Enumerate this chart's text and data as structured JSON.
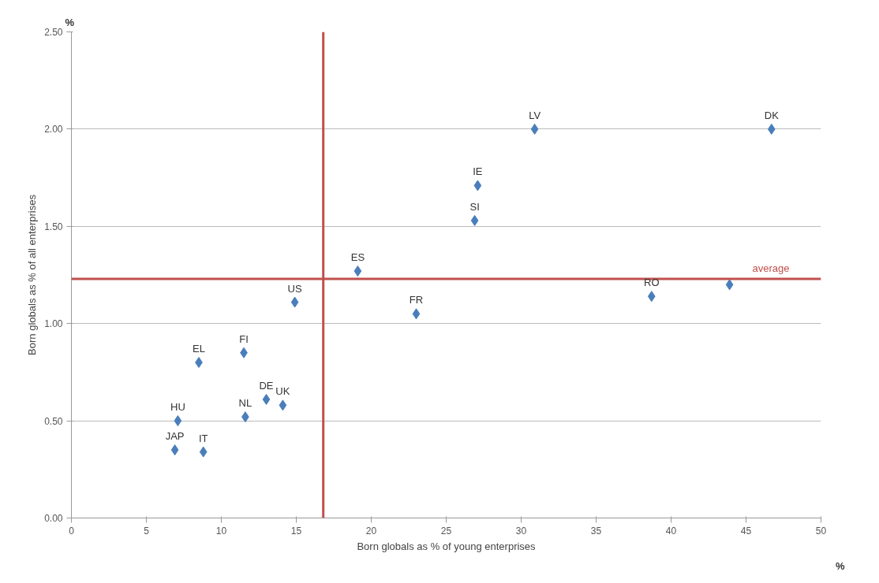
{
  "chart_data": {
    "type": "scatter",
    "xlabel": "Born globals as % of young enterprises",
    "ylabel": "Born globals as % of all enterprises",
    "x": [
      6.9,
      7.1,
      8.5,
      8.8,
      11.5,
      11.6,
      13.0,
      14.1,
      14.9,
      19.1,
      23.0,
      26.9,
      27.1,
      30.9,
      38.7,
      43.9,
      46.7
    ],
    "series": [
      {
        "color": "#4a7ebb",
        "values": [
          0.35,
          0.5,
          0.8,
          0.34,
          0.85,
          0.52,
          0.61,
          0.58,
          1.11,
          1.27,
          1.05,
          1.53,
          1.71,
          2.0,
          1.14,
          1.2,
          2.0
        ]
      }
    ],
    "marker": "diamond",
    "xlim": [
      0,
      50
    ],
    "xticks": [
      0,
      5,
      10,
      15,
      20,
      25,
      30,
      35,
      40,
      45,
      50
    ],
    "ylim": [
      0,
      2.5
    ],
    "yticks": [
      {
        "value": 0,
        "label": "0.00"
      },
      {
        "value": 0.5,
        "label": "0.50"
      },
      {
        "value": 1,
        "label": "1.00"
      },
      {
        "value": 1.5,
        "label": "1.50"
      },
      {
        "value": 2,
        "label": "2.00"
      },
      {
        "value": 2.5,
        "label": "2.50"
      }
    ],
    "grid": "y",
    "ref_lines": [
      {
        "axis": "x",
        "value": 16.8,
        "label": null,
        "color": "#c0504d"
      },
      {
        "axis": "y",
        "value": 1.23,
        "label": "average",
        "color": "#c0504d"
      }
    ],
    "annotations": [
      {
        "text": "JAP",
        "x": 6.9,
        "y": 0.35
      },
      {
        "text": "HU",
        "x": 7.1,
        "y": 0.5
      },
      {
        "text": "EL",
        "x": 8.5,
        "y": 0.8
      },
      {
        "text": "IT",
        "x": 8.8,
        "y": 0.34
      },
      {
        "text": "FI",
        "x": 11.5,
        "y": 0.85
      },
      {
        "text": "NL",
        "x": 11.6,
        "y": 0.52
      },
      {
        "text": "DE",
        "x": 13.0,
        "y": 0.61
      },
      {
        "text": "UK",
        "x": 14.1,
        "y": 0.58
      },
      {
        "text": "US",
        "x": 14.9,
        "y": 1.11
      },
      {
        "text": "ES",
        "x": 19.1,
        "y": 1.27
      },
      {
        "text": "FR",
        "x": 23.0,
        "y": 1.05
      },
      {
        "text": "SI",
        "x": 26.9,
        "y": 1.53
      },
      {
        "text": "IE",
        "x": 27.1,
        "y": 1.71
      },
      {
        "text": "LV",
        "x": 30.9,
        "y": 2.0
      },
      {
        "text": "RO",
        "x": 38.7,
        "y": 1.14
      },
      {
        "text": "DK",
        "x": 46.7,
        "y": 2.0
      },
      "%",
      "%"
    ]
  }
}
